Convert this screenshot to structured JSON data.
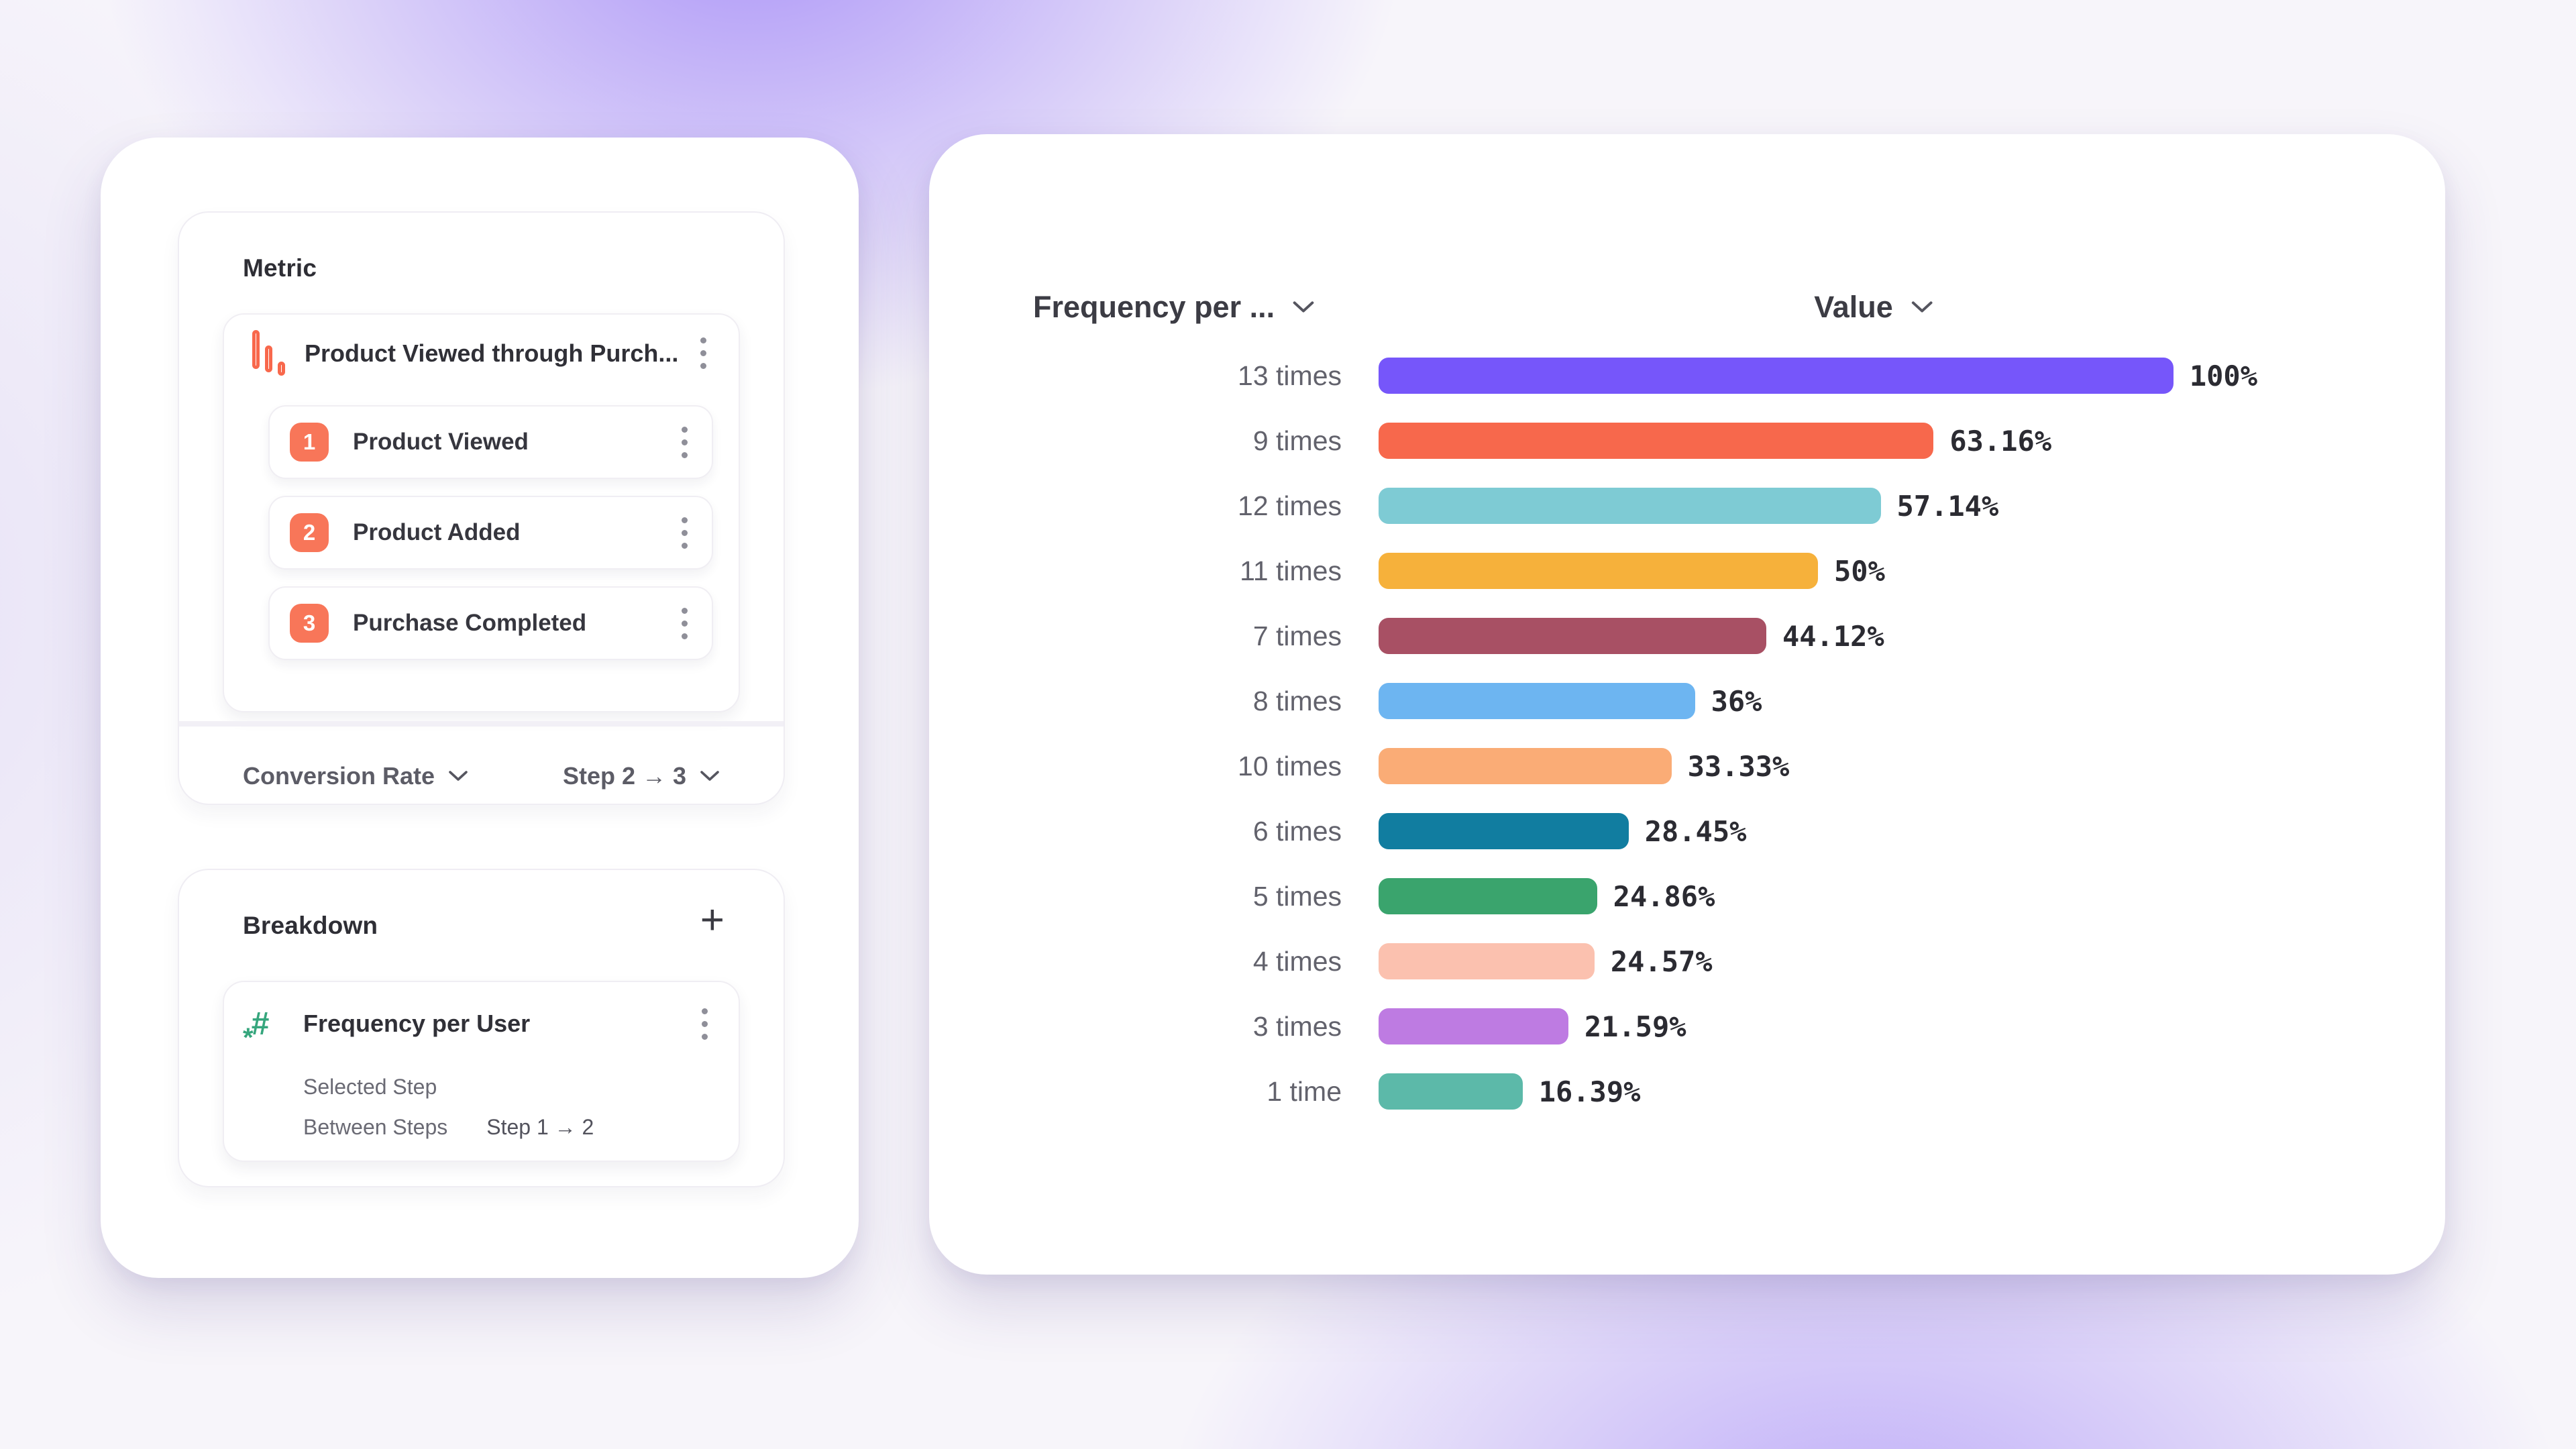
{
  "metric_panel": {
    "title": "Metric",
    "funnel": {
      "name": "Product Viewed through Purch...",
      "steps": [
        {
          "num": "1",
          "label": "Product Viewed"
        },
        {
          "num": "2",
          "label": "Product Added"
        },
        {
          "num": "3",
          "label": "Purchase Completed"
        }
      ]
    },
    "footer": {
      "left_label": "Conversion Rate",
      "right_label": "Step 2 → 3"
    }
  },
  "breakdown_panel": {
    "title": "Breakdown",
    "add_label": "+",
    "item": {
      "name": "Frequency per User",
      "icon_hash": "#",
      "icon_star": "*",
      "rows": [
        {
          "label": "Selected Step",
          "value": ""
        },
        {
          "label": "Between Steps",
          "value": "Step 1 → 2"
        }
      ]
    }
  },
  "chart": {
    "col1_header": "Frequency per ...",
    "col2_header": "Value"
  },
  "chart_data": {
    "type": "bar",
    "orientation": "horizontal",
    "title": "",
    "xlabel": "Value",
    "ylabel": "Frequency per User",
    "xlim": [
      0,
      100
    ],
    "grid": false,
    "legend": "none",
    "categories": [
      "13 times",
      "9 times",
      "12 times",
      "11 times",
      "7 times",
      "8 times",
      "10 times",
      "6 times",
      "5 times",
      "4 times",
      "3 times",
      "1 time"
    ],
    "values": [
      100,
      63.16,
      57.14,
      50,
      44.12,
      36,
      33.33,
      28.45,
      24.86,
      24.57,
      21.59,
      16.39
    ],
    "value_labels": [
      "100%",
      "63.16%",
      "57.14%",
      "50%",
      "44.12%",
      "36%",
      "33.33%",
      "28.45%",
      "24.86%",
      "24.57%",
      "21.59%",
      "16.39%"
    ],
    "bar_colors": [
      "#7656FA",
      "#F7684C",
      "#7ECBD4",
      "#F6B13B",
      "#A85064",
      "#6DB5F1",
      "#FAAC76",
      "#117DA0",
      "#3AA46D",
      "#FBC1AF",
      "#BE7BE2",
      "#5CB9A9"
    ]
  },
  "colors": {
    "accent_orange": "#F87659",
    "accent_green": "#36A67D",
    "background_glow": "#7C58F6",
    "card": "#FFFFFF"
  }
}
